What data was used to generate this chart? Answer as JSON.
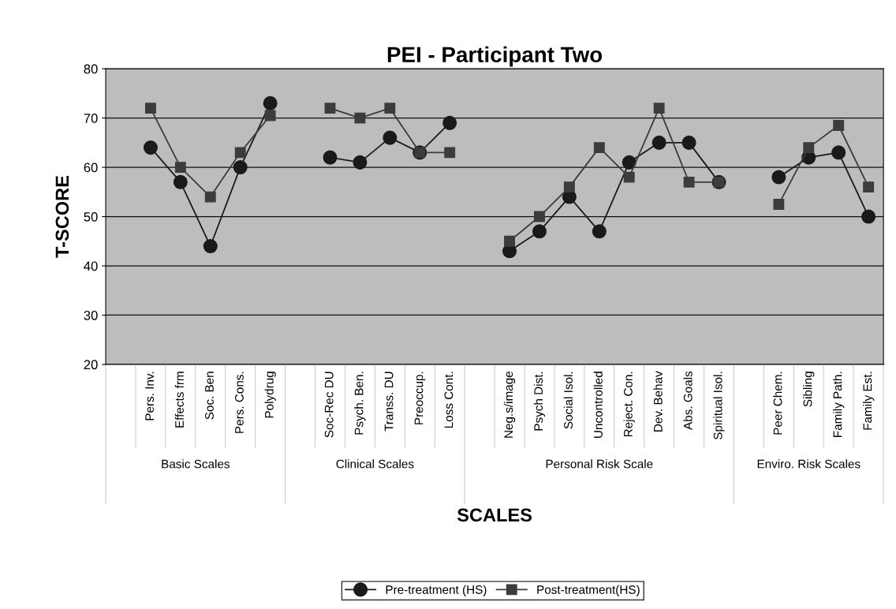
{
  "chart_data": {
    "type": "line",
    "title": "PEI - Participant Two",
    "xlabel": "SCALES",
    "ylabel": "T-SCORE",
    "categories": [
      null,
      "Pers. Inv.",
      "Effects frm",
      "Soc. Ben",
      "Pers. Cons.",
      "Polydrug",
      null,
      "Soc-Rec DU",
      "Psych. Ben.",
      "Transs. DU",
      "Preoccup.",
      "Loss Cont.",
      null,
      "Neg.s/image",
      "Psych Dist.",
      "Social Isol.",
      "Uncontrolled",
      "Reject. Con.",
      "Dev. Behav",
      "Abs. Goals",
      "Spiritual Isol.",
      null,
      "Peer Chem.",
      "Sibling",
      "Family Path.",
      "Family Est."
    ],
    "series": [
      {
        "name": "Pre-treatment (HS)",
        "color": "#1a1a1a",
        "marker": "circle",
        "values": [
          null,
          64,
          57,
          44,
          60,
          73,
          null,
          62,
          61,
          66,
          63,
          69,
          null,
          43,
          47,
          54,
          47,
          61,
          65,
          65,
          57,
          null,
          58,
          62,
          63,
          50
        ]
      },
      {
        "name": "Post-treatment(HS)",
        "color": "#3c3c3c",
        "marker": "square",
        "values": [
          null,
          72,
          60,
          54,
          63,
          70.5,
          null,
          72,
          70,
          72,
          63,
          63,
          null,
          45,
          50,
          56,
          64,
          58,
          72,
          57,
          57,
          null,
          52.5,
          64,
          68.5,
          56
        ]
      }
    ],
    "annotations": [
      "Basic Scales",
      "Clinical Scales",
      "Personal Risk Scale",
      "Enviro. Risk Scales"
    ],
    "ylim": [
      20,
      80
    ],
    "yticks": [
      20,
      30,
      40,
      50,
      60,
      70,
      80
    ],
    "grid": "y",
    "legend": "bottom",
    "line_style": "solid"
  }
}
